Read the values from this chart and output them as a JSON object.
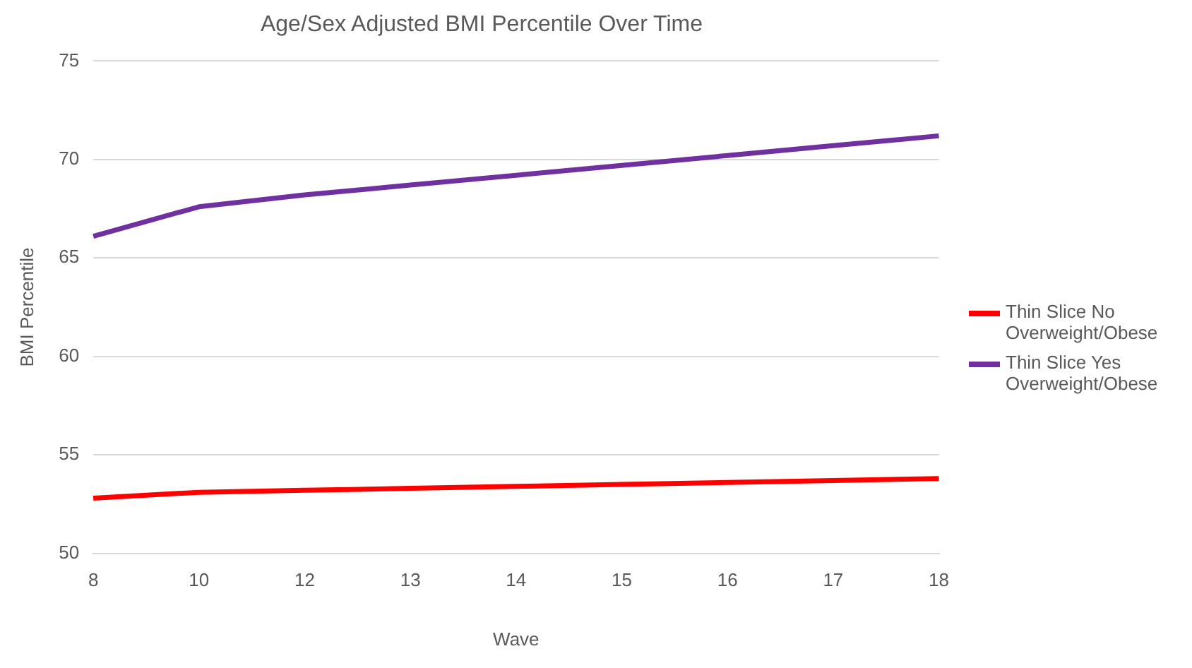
{
  "chart_data": {
    "type": "line",
    "title": "Age/Sex Adjusted BMI Percentile Over Time",
    "xlabel": "Wave",
    "ylabel": "BMI Percentile",
    "categories": [
      "8",
      "10",
      "12",
      "13",
      "14",
      "15",
      "16",
      "17",
      "18"
    ],
    "series": [
      {
        "name": "Thin Slice No Overweight/Obese",
        "color": "#ff0000",
        "values": [
          52.8,
          53.1,
          53.2,
          53.3,
          53.4,
          53.5,
          53.6,
          53.7,
          53.8
        ]
      },
      {
        "name": "Thin Slice Yes Overweight/Obese",
        "color": "#7030a0",
        "values": [
          66.1,
          67.6,
          68.2,
          68.7,
          69.2,
          69.7,
          70.2,
          70.7,
          71.2
        ]
      }
    ],
    "ylim": [
      50,
      75
    ],
    "yticks": [
      50,
      55,
      60,
      65,
      70,
      75
    ],
    "grid": "y",
    "legend": "right",
    "marker": "none",
    "line_style": "solid"
  }
}
